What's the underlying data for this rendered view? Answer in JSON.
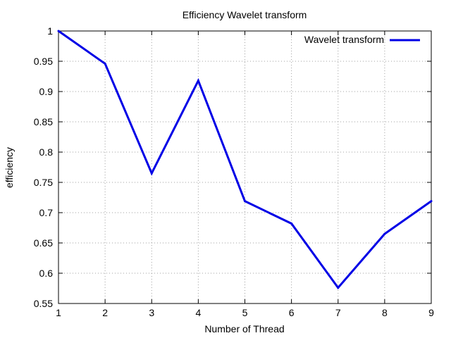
{
  "chart_data": {
    "type": "line",
    "title": "Efficiency Wavelet transform",
    "xlabel": "Number of Thread",
    "ylabel": "efficiency",
    "x": [
      1,
      2,
      3,
      4,
      5,
      6,
      7,
      8,
      9
    ],
    "series": [
      {
        "name": "Wavelet transform",
        "values": [
          1.0,
          0.946,
          0.765,
          0.918,
          0.719,
          0.682,
          0.576,
          0.665,
          0.719
        ],
        "color": "#0000e6"
      }
    ],
    "xlim": [
      1,
      9
    ],
    "ylim": [
      0.55,
      1.0
    ],
    "xticks": [
      1,
      2,
      3,
      4,
      5,
      6,
      7,
      8,
      9
    ],
    "yticks": [
      0.55,
      0.6,
      0.65,
      0.7,
      0.75,
      0.8,
      0.85,
      0.9,
      0.95,
      1
    ],
    "grid": true,
    "legend_position": "top-right"
  }
}
